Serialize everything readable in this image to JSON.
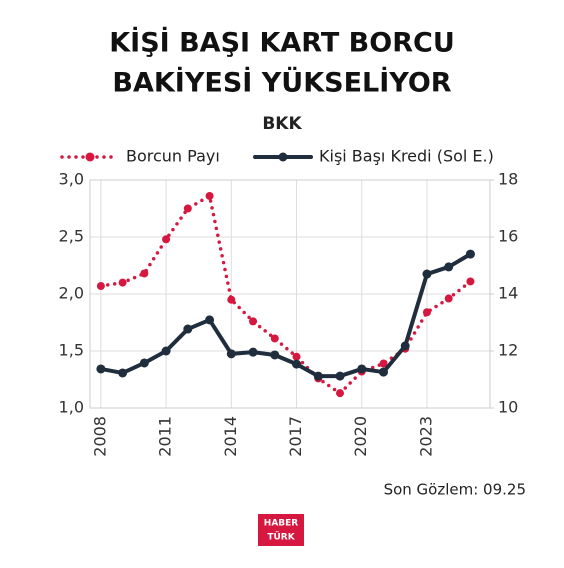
{
  "chart_data": {
    "type": "line",
    "title": [
      "KİŞİ BAŞI KART BORCU",
      "BAKİYESİ YÜKSELİYOR"
    ],
    "subtitle": "BKK",
    "annotation": "Son Gözlem: 09.25",
    "logo": [
      "HABER",
      "TÜRK"
    ],
    "x": [
      2008,
      2009,
      2010,
      2011,
      2012,
      2013,
      2014,
      2015,
      2016,
      2017,
      2018,
      2019,
      2020,
      2021,
      2022,
      2023,
      2024,
      2025
    ],
    "series": [
      {
        "name": "Borcun Payı",
        "color": "#d6173f",
        "style": "dotted",
        "axis": "y",
        "values": [
          2.07,
          2.1,
          2.18,
          2.48,
          2.75,
          2.86,
          1.95,
          1.76,
          1.61,
          1.45,
          1.26,
          1.13,
          1.32,
          1.39,
          1.52,
          1.84,
          1.96,
          2.11
        ]
      },
      {
        "name": "Kişi Başı Kredi (Sol E.)",
        "color": "#1f2d3d",
        "style": "solid",
        "axis": "y2",
        "values": [
          11.37,
          11.23,
          11.58,
          12.0,
          12.77,
          13.09,
          11.9,
          11.96,
          11.86,
          11.54,
          11.12,
          11.12,
          11.37,
          11.26,
          12.18,
          14.7,
          14.95,
          15.4
        ]
      }
    ],
    "xlim": [
      2007.5,
      2025.9
    ],
    "xticks": [
      2008,
      2011,
      2014,
      2017,
      2020,
      2023
    ],
    "ylim": [
      1,
      3
    ],
    "yticks": [
      {
        "value": 1,
        "label": "1,0"
      },
      {
        "value": 1.5,
        "label": "1,5"
      },
      {
        "value": 2,
        "label": "2,0"
      },
      {
        "value": 2.5,
        "label": "2,5"
      },
      {
        "value": 3,
        "label": "3,0"
      }
    ],
    "y2lim": [
      10,
      18
    ],
    "y2ticks": [
      10,
      12,
      14,
      16,
      18
    ],
    "grid": true,
    "legend": "top"
  }
}
